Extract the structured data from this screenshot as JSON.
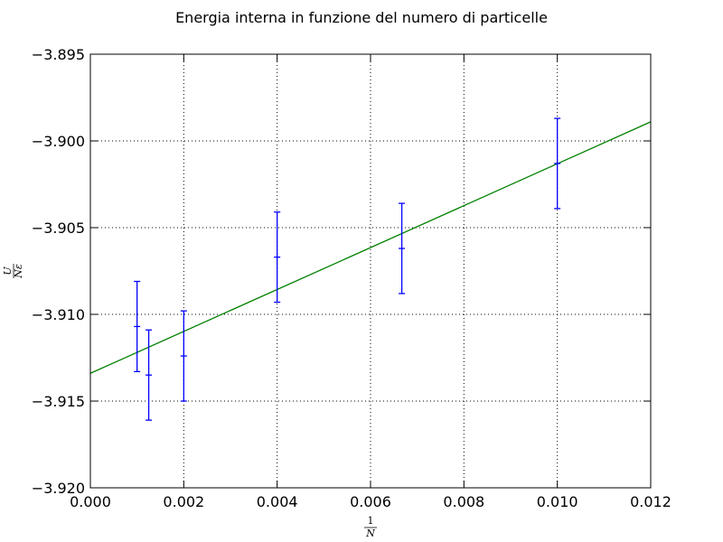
{
  "chart_data": {
    "type": "scatter",
    "title": "Energia interna in funzione del numero di particelle",
    "xlabel": {
      "numerator": "1",
      "denominator": "N"
    },
    "ylabel": {
      "numerator": "U",
      "denominator": "Nε"
    },
    "xlim": [
      0.0,
      0.012
    ],
    "ylim": [
      -3.92,
      -3.895
    ],
    "x_ticks": [
      0.0,
      0.002,
      0.004,
      0.006,
      0.008,
      0.01,
      0.012
    ],
    "x_tick_labels": [
      "0.000",
      "0.002",
      "0.004",
      "0.006",
      "0.008",
      "0.010",
      "0.012"
    ],
    "y_ticks": [
      -3.92,
      -3.915,
      -3.91,
      -3.905,
      -3.9,
      -3.895
    ],
    "y_tick_labels": [
      "−3.920",
      "−3.915",
      "−3.910",
      "−3.905",
      "−3.900",
      "−3.895"
    ],
    "grid": true,
    "series": [
      {
        "kind": "errorbar",
        "color": "#0000ff",
        "points": [
          {
            "x": 0.001,
            "y": -3.9107,
            "err": 0.0026
          },
          {
            "x": 0.00125,
            "y": -3.9135,
            "err": 0.0026
          },
          {
            "x": 0.002,
            "y": -3.9124,
            "err": 0.0026
          },
          {
            "x": 0.004,
            "y": -3.9067,
            "err": 0.0026
          },
          {
            "x": 0.00667,
            "y": -3.9062,
            "err": 0.0026
          },
          {
            "x": 0.01,
            "y": -3.9013,
            "err": 0.0026
          }
        ]
      },
      {
        "kind": "line",
        "color": "#008000",
        "x": [
          0.0,
          0.012
        ],
        "y": [
          -3.9134,
          -3.8989
        ]
      }
    ]
  }
}
